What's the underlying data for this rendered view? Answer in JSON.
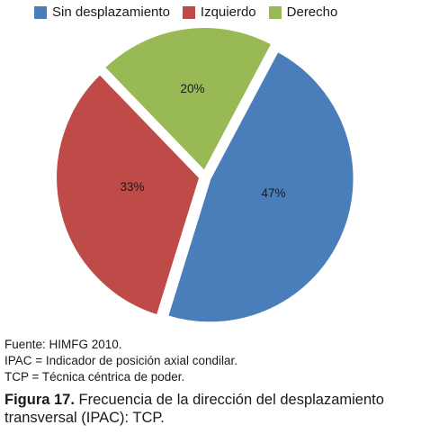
{
  "chart_data": {
    "type": "pie",
    "slices": [
      {
        "name": "Sin desplazamiento",
        "value": 47,
        "label": "47%",
        "color": "#4a7ebb"
      },
      {
        "name": "Izquierdo",
        "value": 33,
        "label": "33%",
        "color": "#be4b48"
      },
      {
        "name": "Derecho",
        "value": 20,
        "label": "20%",
        "color": "#98b954"
      }
    ],
    "legend_position": "top"
  },
  "notes": {
    "source": "Fuente: HIMFG 2010.",
    "ipac": "IPAC = Indicador de posición axial condilar.",
    "tcp": "TCP = Técnica céntrica de poder."
  },
  "caption": {
    "label": "Figura 17.",
    "text": "Frecuencia de la dirección del desplazamiento transversal (IPAC): TCP."
  }
}
